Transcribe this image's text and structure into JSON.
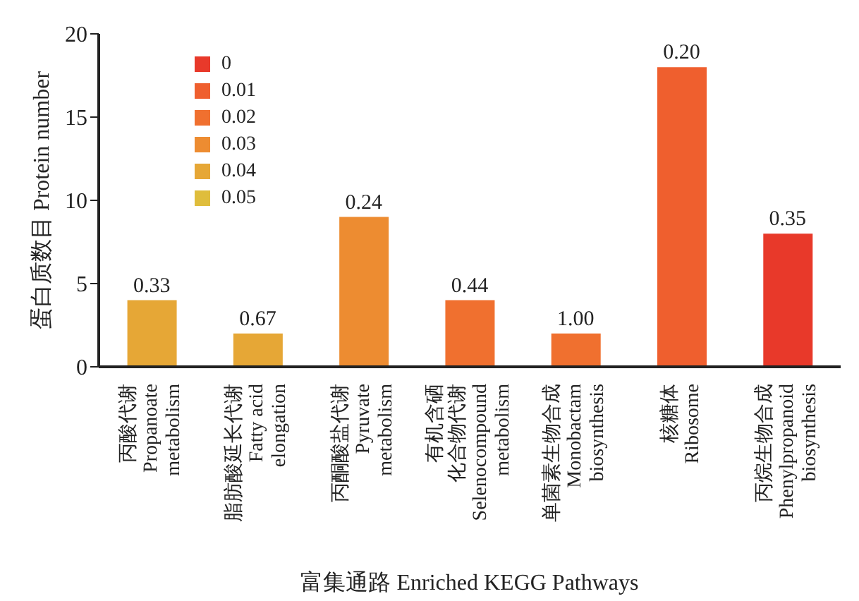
{
  "chart_data": {
    "type": "bar",
    "xlabel": "富集通路 Enriched KEGG Pathways",
    "ylabel": "蛋白质数目 Protein number",
    "categories": [
      "丙酸代谢\nPropanoate\nmetabolism",
      "脂肪酸延长代谢\nFatty acid\nelongation",
      "丙酮酸盐代谢\nPyruvate\nmetabolism",
      "有机含硒化合物代谢\nSelenocompound\nmetabolism",
      "单菌素生物合成\nMonobactam\nbiosynthesis",
      "核糖体\nRibosome",
      "丙烷生物合成\nPhenylpropanoid\nbiosynthesis"
    ],
    "series": [
      {
        "name": "0",
        "color": "#e8392a",
        "values": [
          null,
          null,
          null,
          null,
          null,
          null,
          8
        ]
      },
      {
        "name": "0.01",
        "color": "#ef5f2e",
        "values": [
          null,
          null,
          null,
          null,
          null,
          18,
          null
        ]
      },
      {
        "name": "0.02",
        "color": "#f0702f",
        "values": [
          null,
          null,
          null,
          4,
          2,
          null,
          null
        ]
      },
      {
        "name": "0.03",
        "color": "#ed8c31",
        "values": [
          null,
          null,
          9,
          null,
          null,
          null,
          null
        ]
      },
      {
        "name": "0.04",
        "color": "#e6a736",
        "values": [
          4,
          2,
          null,
          null,
          null,
          null,
          null
        ]
      },
      {
        "name": "0.05",
        "color": "#dfbd3c",
        "values": [
          null,
          null,
          null,
          null,
          null,
          null,
          null
        ]
      }
    ],
    "annotations": [
      {
        "text": "0.33",
        "x": "丙酸代谢\nPropanoate\nmetabolism",
        "y": 4
      },
      {
        "text": "0.67",
        "x": "脂肪酸延长代谢\nFatty acid\nelongation",
        "y": 2
      },
      {
        "text": "0.24",
        "x": "丙酮酸盐代谢\nPyruvate\nmetabolism",
        "y": 9
      },
      {
        "text": "0.44",
        "x": "有机含硒化合物代谢\nSelenocompound\nmetabolism",
        "y": 4
      },
      {
        "text": "1.00",
        "x": "单菌素生物合成\nMonobactam\nbiosynthesis",
        "y": 2
      },
      {
        "text": "0.20",
        "x": "核糖体\nRibosome",
        "y": 18
      },
      {
        "text": "0.35",
        "x": "丙烷生物合成\nPhenylpropanoid\nbiosynthesis",
        "y": 8
      }
    ],
    "stacked": true,
    "ylim": [
      0,
      20
    ],
    "yticks": [
      0,
      5,
      10,
      15,
      20
    ],
    "grid": false,
    "legend": "top left"
  }
}
